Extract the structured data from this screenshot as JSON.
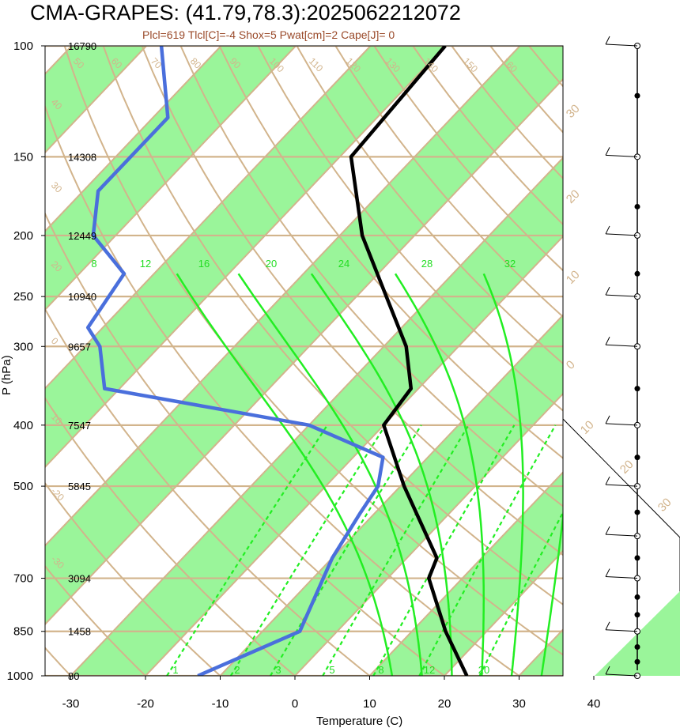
{
  "title": "CMA-GRAPES: (41.79,78.3):2025062212072",
  "subtitle": "Plcl=619 Tlcl[C]=-4 Shox=5 Pwat[cm]=2 Cape[J]= 0",
  "colors": {
    "band": "#9af59a",
    "isotherm": "#d2b48c",
    "mixing": "#22ee22",
    "temperature": "#000000",
    "dewpoint": "#4a6fdc"
  },
  "chart_data": {
    "type": "line",
    "title": "CMA-GRAPES: (41.79,78.3):2025062212072",
    "xlabel": "Temperature (C)",
    "ylabel": "P (hPa)",
    "x_ticks": [
      "-30",
      "-20",
      "-10",
      "0",
      "10",
      "20",
      "30",
      "40"
    ],
    "y_ticks": [
      "100",
      "150",
      "200",
      "250",
      "300",
      "400",
      "500",
      "700",
      "850",
      "1000"
    ],
    "heights": [
      {
        "p": 100,
        "label": "16790"
      },
      {
        "p": 150,
        "label": "14308"
      },
      {
        "p": 200,
        "label": "12449"
      },
      {
        "p": 250,
        "label": "10940"
      },
      {
        "p": 300,
        "label": "9657"
      },
      {
        "p": 400,
        "label": "7547"
      },
      {
        "p": 500,
        "label": "5845"
      },
      {
        "p": 700,
        "label": "3094"
      },
      {
        "p": 850,
        "label": "1458"
      },
      {
        "p": 1000,
        "label": "80"
      }
    ],
    "mixing_ratio_labels": [
      "8",
      "12",
      "16",
      "20",
      "24",
      "28",
      "32"
    ],
    "low_mixing_labels": [
      "1",
      "2",
      "3",
      "5",
      "8",
      "12",
      "20"
    ],
    "isotherm_labels": [
      "30",
      "20",
      "10",
      "0",
      "10",
      "20",
      "30"
    ],
    "dry_adiabat_labels": [
      "50",
      "60",
      "70",
      "80",
      "90",
      "100",
      "110",
      "120",
      "130",
      "140",
      "150",
      "160",
      "40",
      "30",
      "20",
      "0",
      "10",
      "-20",
      "-30"
    ],
    "series": [
      {
        "name": "Temperature",
        "points": [
          {
            "p": 100,
            "t": -60
          },
          {
            "p": 150,
            "t": -58.5
          },
          {
            "p": 200,
            "t": -47
          },
          {
            "p": 250,
            "t": -36
          },
          {
            "p": 300,
            "t": -27
          },
          {
            "p": 350,
            "t": -21
          },
          {
            "p": 400,
            "t": -20
          },
          {
            "p": 500,
            "t": -9.5
          },
          {
            "p": 650,
            "t": 4
          },
          {
            "p": 700,
            "t": 5.5
          },
          {
            "p": 850,
            "t": 14.5
          },
          {
            "p": 1000,
            "t": 23
          }
        ]
      },
      {
        "name": "Dewpoint",
        "points": [
          {
            "p": 100,
            "t": -98
          },
          {
            "p": 130,
            "t": -88
          },
          {
            "p": 170,
            "t": -88
          },
          {
            "p": 200,
            "t": -83
          },
          {
            "p": 230,
            "t": -74
          },
          {
            "p": 280,
            "t": -72
          },
          {
            "p": 300,
            "t": -68
          },
          {
            "p": 350,
            "t": -62
          },
          {
            "p": 400,
            "t": -30
          },
          {
            "p": 450,
            "t": -16
          },
          {
            "p": 500,
            "t": -13
          },
          {
            "p": 550,
            "t": -12
          },
          {
            "p": 650,
            "t": -10
          },
          {
            "p": 850,
            "t": -5
          },
          {
            "p": 1000,
            "t": -13
          }
        ]
      }
    ],
    "wind_barbs": [
      {
        "p": 100,
        "label": ""
      },
      {
        "p": 150,
        "label": ""
      },
      {
        "p": 200,
        "label": ""
      },
      {
        "p": 250,
        "label": ""
      },
      {
        "p": 300,
        "label": ""
      },
      {
        "p": 400,
        "label": ""
      },
      {
        "p": 500,
        "label": ""
      },
      {
        "p": 600,
        "label": ""
      },
      {
        "p": 700,
        "label": ""
      },
      {
        "p": 850,
        "label": ""
      },
      {
        "p": 1000,
        "label": ""
      }
    ]
  }
}
